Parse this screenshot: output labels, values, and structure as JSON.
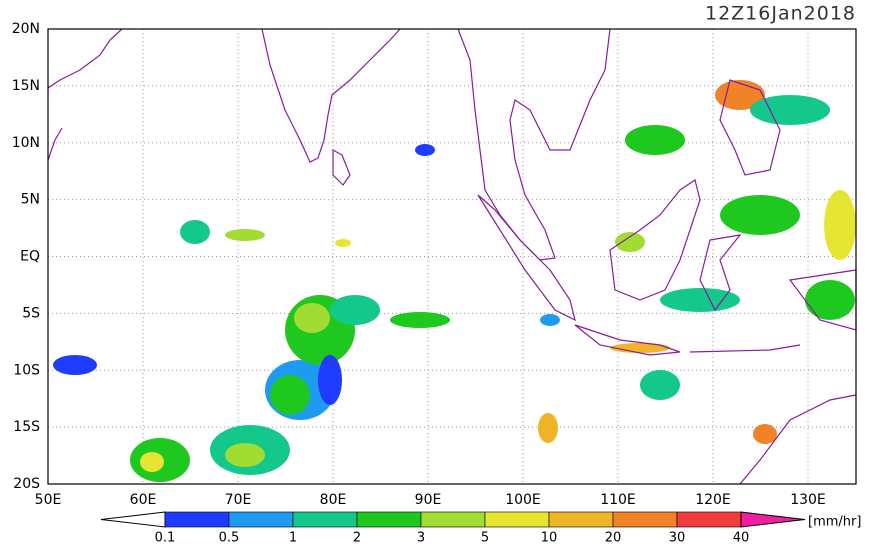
{
  "title": "12Z16Jan2018",
  "lat_labels": [
    "20N",
    "15N",
    "10N",
    "5N",
    "EQ",
    "5S",
    "10S",
    "15S",
    "20S"
  ],
  "lon_labels": [
    "50E",
    "60E",
    "70E",
    "80E",
    "90E",
    "100E",
    "110E",
    "120E",
    "130E"
  ],
  "colorbar": {
    "labels": [
      "0.1",
      "0.5",
      "1",
      "2",
      "3",
      "5",
      "10",
      "20",
      "30",
      "40"
    ],
    "colors": [
      "#ffffff",
      "#1e3cff",
      "#1e9bf0",
      "#14c88c",
      "#1ec81e",
      "#a0dc32",
      "#e6e632",
      "#f0b428",
      "#f08228",
      "#f03c3c",
      "#f01ea0"
    ],
    "unit": "[mm/hr]"
  }
}
